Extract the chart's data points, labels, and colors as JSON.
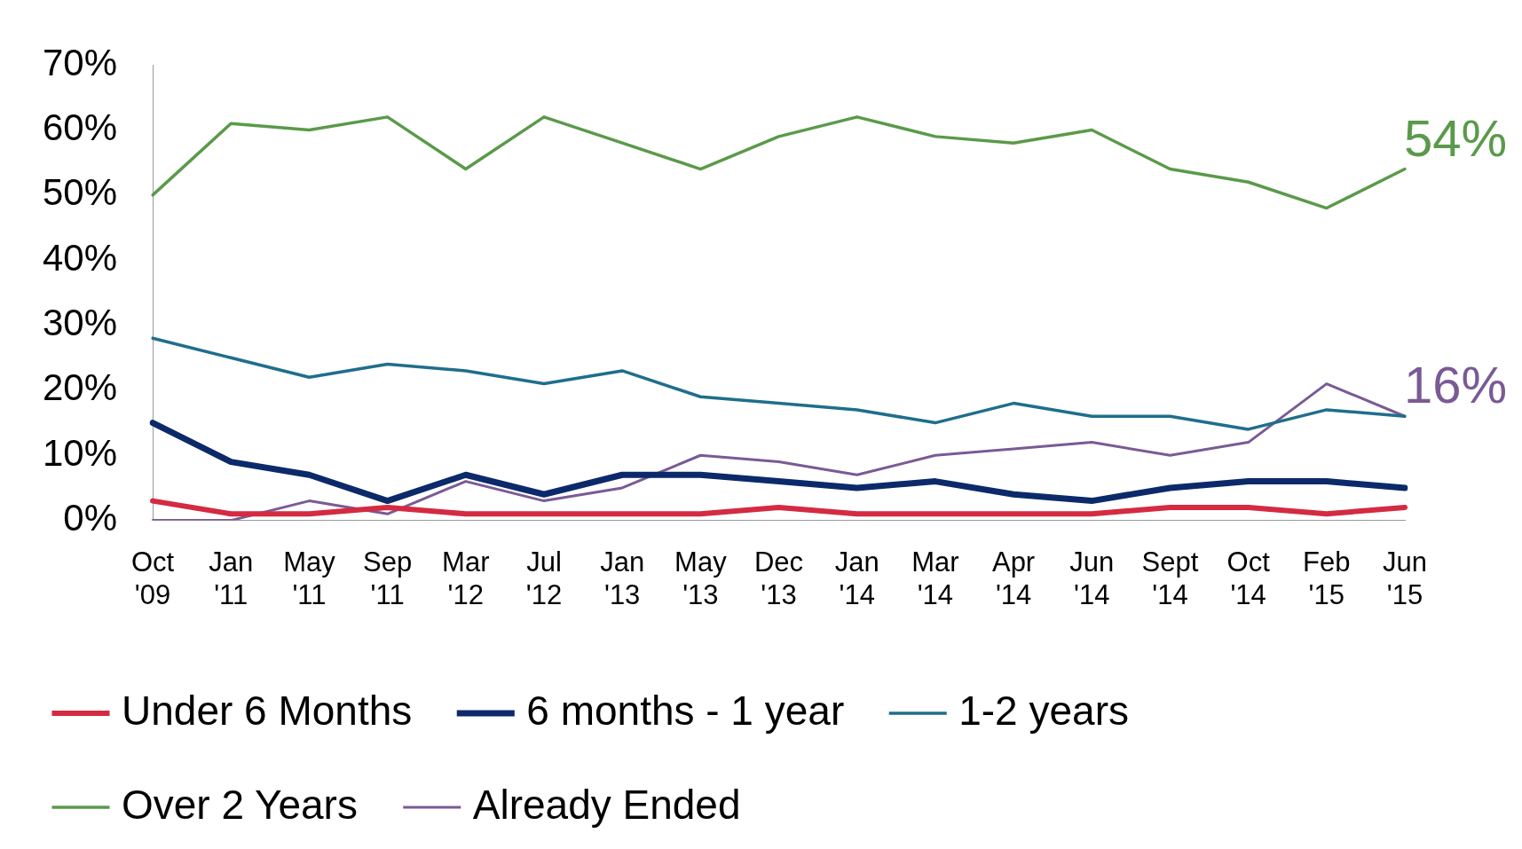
{
  "chart_data": {
    "type": "line",
    "categories": [
      "Oct '09",
      "Jan '11",
      "May '11",
      "Sep '11",
      "Mar '12",
      "Jul '12",
      "Jan '13",
      "May '13",
      "Dec '13",
      "Jan '14",
      "Mar '14",
      "Apr '14",
      "Jun '14",
      "Sept '14",
      "Oct '14",
      "Feb '15",
      "Jun '15"
    ],
    "series": [
      {
        "name": "Under 6 Months",
        "color": "#d42a42",
        "values": [
          3,
          1,
          1,
          2,
          1,
          1,
          1,
          1,
          2,
          1,
          1,
          1,
          1,
          2,
          2,
          1,
          2
        ]
      },
      {
        "name": "6 months - 1 year",
        "color": "#0c2a6a",
        "values": [
          15,
          9,
          7,
          3,
          7,
          4,
          7,
          7,
          6,
          5,
          6,
          4,
          3,
          5,
          6,
          6,
          5
        ]
      },
      {
        "name": "1-2 years",
        "color": "#1f6e8c",
        "values": [
          28,
          25,
          22,
          24,
          23,
          21,
          23,
          19,
          18,
          17,
          15,
          18,
          16,
          16,
          14,
          17,
          16
        ]
      },
      {
        "name": "Over 2 Years",
        "color": "#5a9a4a",
        "values": [
          50,
          61,
          60,
          62,
          54,
          62,
          58,
          54,
          59,
          62,
          59,
          58,
          60,
          54,
          52,
          48,
          54
        ]
      },
      {
        "name": "Already Ended",
        "color": "#7a5a95",
        "values": [
          0,
          0,
          3,
          1,
          6,
          3,
          5,
          10,
          9,
          7,
          10,
          11,
          12,
          10,
          12,
          21,
          16
        ]
      }
    ],
    "ylim": [
      0,
      70
    ],
    "yticks": [
      {
        "value": 0,
        "label": "0%"
      },
      {
        "value": 10,
        "label": "10%"
      },
      {
        "value": 20,
        "label": "20%"
      },
      {
        "value": 30,
        "label": "30%"
      },
      {
        "value": 40,
        "label": "40%"
      },
      {
        "value": 50,
        "label": "50%"
      },
      {
        "value": 60,
        "label": "60%"
      },
      {
        "value": 70,
        "label": "70%"
      }
    ],
    "annotations": [
      {
        "text": "54%",
        "x": "Jun '15",
        "y": 54
      },
      {
        "text": "16%",
        "x": "Jun '15",
        "y": 16
      }
    ],
    "grid": false,
    "legend": "bottom",
    "marker": "none",
    "line_style": "solid"
  }
}
